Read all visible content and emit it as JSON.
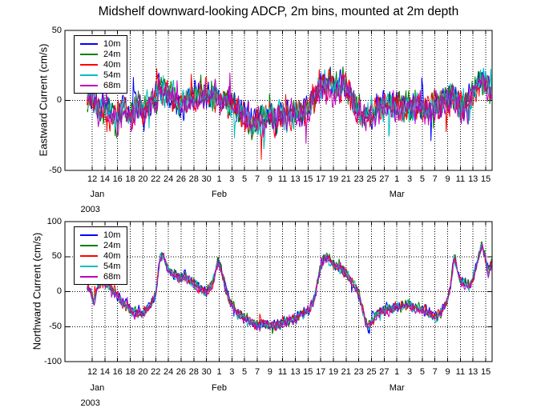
{
  "figure": {
    "title": "Midshelf downward-looking ADCP, 2m bins, mounted at 2m depth",
    "background": "#ffffff",
    "axis_color": "#000000"
  },
  "chart_data": [
    {
      "type": "line",
      "ylabel": "Eastward Current (cm/s)",
      "xlabel": "",
      "ylim": [
        -50,
        50
      ],
      "yticks": [
        50,
        0,
        -50
      ],
      "xlim_days": [
        7.7,
        75
      ],
      "xtick_days": [
        12,
        14,
        16,
        18,
        20,
        22,
        24,
        26,
        28,
        30,
        32,
        34,
        36,
        38,
        40,
        42,
        44,
        46,
        48,
        50,
        52,
        54,
        56,
        58,
        60,
        62,
        64,
        66,
        68,
        70,
        72,
        74
      ],
      "xtick_labels": [
        "12",
        "14",
        "16",
        "18",
        "20",
        "22",
        "24",
        "26",
        "28",
        "30",
        "1",
        "3",
        "5",
        "7",
        "9",
        "11",
        "13",
        "15",
        "17",
        "19",
        "21",
        "23",
        "25",
        "27",
        "1",
        "3",
        "5",
        "7",
        "9",
        "11",
        "13",
        "15"
      ],
      "months": [
        {
          "label": "Jan",
          "day": 12.8
        },
        {
          "label": "Feb",
          "day": 32
        },
        {
          "label": "Mar",
          "day": 60
        }
      ],
      "year": {
        "label": "2003",
        "day": 11.7
      },
      "grid": "dotted",
      "legend_position": "upper-left",
      "series": [
        {
          "name": "10m",
          "color": "#0000ff",
          "offset": 1.2
        },
        {
          "name": "24m",
          "color": "#007f00",
          "offset": 0.6
        },
        {
          "name": "40m",
          "color": "#ff0000",
          "offset": 0
        },
        {
          "name": "54m",
          "color": "#00bfbf",
          "offset": -0.6
        },
        {
          "name": "68m",
          "color": "#bf00bf",
          "offset": -1.1
        }
      ],
      "data_start_day": 11.2,
      "data_end_day": 75,
      "noise_amplitude": 10,
      "mean_cm_s": [
        [
          11.2,
          2
        ],
        [
          12,
          4
        ],
        [
          13,
          -7
        ],
        [
          14,
          -4
        ],
        [
          15,
          -9
        ],
        [
          16,
          -12
        ],
        [
          17,
          -7
        ],
        [
          18,
          -10
        ],
        [
          19,
          -5
        ],
        [
          20,
          -8
        ],
        [
          21,
          -4
        ],
        [
          22,
          3
        ],
        [
          23,
          7
        ],
        [
          24,
          4
        ],
        [
          25,
          -1
        ],
        [
          26,
          -4
        ],
        [
          27,
          2
        ],
        [
          28,
          1
        ],
        [
          29,
          5
        ],
        [
          30,
          2
        ],
        [
          31,
          4
        ],
        [
          32,
          3
        ],
        [
          33,
          -1
        ],
        [
          34,
          -4
        ],
        [
          35,
          -7
        ],
        [
          36,
          -11
        ],
        [
          37,
          -15
        ],
        [
          38,
          -17
        ],
        [
          39,
          -14
        ],
        [
          40,
          -12
        ],
        [
          41,
          -15
        ],
        [
          42,
          -10
        ],
        [
          43,
          -13
        ],
        [
          44,
          -8
        ],
        [
          45,
          -10
        ],
        [
          46,
          -5
        ],
        [
          47,
          2
        ],
        [
          47.6,
          10
        ],
        [
          48.5,
          9
        ],
        [
          49.5,
          11
        ],
        [
          50.5,
          7
        ],
        [
          51.5,
          10
        ],
        [
          52.5,
          6
        ],
        [
          53.5,
          -3
        ],
        [
          54.5,
          -11
        ],
        [
          55.5,
          -10
        ],
        [
          56.5,
          -7
        ],
        [
          58,
          -5
        ],
        [
          59,
          -4
        ],
        [
          60,
          -4
        ],
        [
          61,
          -6
        ],
        [
          62,
          -3
        ],
        [
          63,
          -5
        ],
        [
          64,
          -3
        ],
        [
          65,
          -6
        ],
        [
          66,
          -3
        ],
        [
          67,
          -2
        ],
        [
          68,
          1
        ],
        [
          69,
          3
        ],
        [
          70,
          -3
        ],
        [
          71,
          -5
        ],
        [
          72,
          6
        ],
        [
          73,
          12
        ],
        [
          73.6,
          15
        ],
        [
          74.3,
          9
        ],
        [
          75,
          2
        ]
      ]
    },
    {
      "type": "line",
      "ylabel": "Northward Current (cm/s)",
      "xlabel": "",
      "ylim": [
        -100,
        100
      ],
      "yticks": [
        100,
        50,
        0,
        -50,
        -100
      ],
      "xlim_days": [
        7.7,
        75
      ],
      "xtick_days": [
        12,
        14,
        16,
        18,
        20,
        22,
        24,
        26,
        28,
        30,
        32,
        34,
        36,
        38,
        40,
        42,
        44,
        46,
        48,
        50,
        52,
        54,
        56,
        58,
        60,
        62,
        64,
        66,
        68,
        70,
        72,
        74
      ],
      "xtick_labels": [
        "12",
        "14",
        "16",
        "18",
        "20",
        "22",
        "24",
        "26",
        "28",
        "30",
        "1",
        "3",
        "5",
        "7",
        "9",
        "11",
        "13",
        "15",
        "17",
        "19",
        "21",
        "23",
        "25",
        "27",
        "1",
        "3",
        "5",
        "7",
        "9",
        "11",
        "13",
        "15"
      ],
      "months": [
        {
          "label": "Jan",
          "day": 12.8
        },
        {
          "label": "Feb",
          "day": 32
        },
        {
          "label": "Mar",
          "day": 60
        }
      ],
      "year": {
        "label": "2003",
        "day": 11.7
      },
      "grid": "dotted",
      "legend_position": "upper-left",
      "series": [
        {
          "name": "10m",
          "color": "#0000ff",
          "offset": 1.2
        },
        {
          "name": "24m",
          "color": "#007f00",
          "offset": 0.6
        },
        {
          "name": "40m",
          "color": "#ff0000",
          "offset": 0
        },
        {
          "name": "54m",
          "color": "#00bfbf",
          "offset": -0.6
        },
        {
          "name": "68m",
          "color": "#bf00bf",
          "offset": -1.1
        }
      ],
      "data_start_day": 11.2,
      "data_end_day": 75,
      "noise_amplitude": 7,
      "mean_cm_s": [
        [
          11.2,
          8
        ],
        [
          11.8,
          2
        ],
        [
          12.2,
          -18
        ],
        [
          12.6,
          0
        ],
        [
          13,
          10
        ],
        [
          14,
          12
        ],
        [
          15,
          6
        ],
        [
          16,
          -6
        ],
        [
          17,
          -18
        ],
        [
          18,
          -26
        ],
        [
          19,
          -30
        ],
        [
          20,
          -30
        ],
        [
          21,
          -22
        ],
        [
          22,
          -2
        ],
        [
          22.7,
          48
        ],
        [
          23.2,
          52
        ],
        [
          24,
          30
        ],
        [
          25,
          22
        ],
        [
          26,
          20
        ],
        [
          27,
          18
        ],
        [
          28,
          14
        ],
        [
          29,
          4
        ],
        [
          30,
          0
        ],
        [
          31,
          12
        ],
        [
          31.8,
          42
        ],
        [
          32.5,
          25
        ],
        [
          33,
          5
        ],
        [
          34,
          -18
        ],
        [
          35,
          -30
        ],
        [
          36,
          -38
        ],
        [
          37,
          -45
        ],
        [
          38,
          -48
        ],
        [
          39,
          -46
        ],
        [
          40,
          -50
        ],
        [
          41,
          -48
        ],
        [
          42,
          -45
        ],
        [
          43,
          -42
        ],
        [
          44,
          -38
        ],
        [
          45,
          -32
        ],
        [
          46,
          -28
        ],
        [
          47,
          -10
        ],
        [
          48,
          38
        ],
        [
          48.7,
          50
        ],
        [
          49.5,
          45
        ],
        [
          50,
          38
        ],
        [
          51,
          32
        ],
        [
          52,
          28
        ],
        [
          53,
          12
        ],
        [
          54,
          -5
        ],
        [
          55,
          -40
        ],
        [
          55.5,
          -52
        ],
        [
          56,
          -45
        ],
        [
          57,
          -30
        ],
        [
          58,
          -26
        ],
        [
          59,
          -25
        ],
        [
          60,
          -22
        ],
        [
          61,
          -20
        ],
        [
          62,
          -20
        ],
        [
          63,
          -24
        ],
        [
          64,
          -26
        ],
        [
          65,
          -30
        ],
        [
          66,
          -36
        ],
        [
          67,
          -32
        ],
        [
          68,
          -12
        ],
        [
          68.4,
          5
        ],
        [
          69,
          48
        ],
        [
          69.5,
          30
        ],
        [
          70,
          15
        ],
        [
          71,
          10
        ],
        [
          71.5,
          8
        ],
        [
          72,
          20
        ],
        [
          72.8,
          45
        ],
        [
          73.4,
          68
        ],
        [
          74,
          45
        ],
        [
          74.4,
          28
        ],
        [
          75,
          42
        ]
      ]
    }
  ]
}
